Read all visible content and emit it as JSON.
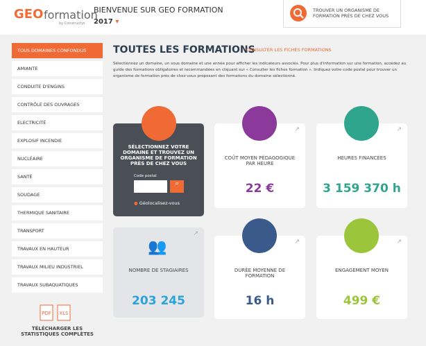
{
  "header": {
    "logo": {
      "brand": "GEO",
      "name": "formation",
      "by": "by Constructys"
    },
    "welcome": "BIENVENUE SUR GEO FORMATION",
    "year": "2017",
    "search_cta": "TROUVER UN ORGANISME DE FORMATION PRÈS DE CHEZ VOUS"
  },
  "sidebar": {
    "items": [
      "TOUS DOMAINES CONFONDUS",
      "AMIANTE",
      "CONDUITE D'ENGINS",
      "CONTRÔLE DES OUVRAGES",
      "ELECTRICITÉ",
      "EXPLOSIF INCENDIE",
      "NUCLÉAIRE",
      "SANTÉ",
      "SOUDAGE",
      "THERMIQUE SANITAIRE",
      "TRANSPORT",
      "TRAVAUX EN HAUTEUR",
      "TRAVAUX MILIEU INDUSTRIEL",
      "TRAVAUX SUBAQUATIQUES"
    ],
    "downloads": {
      "pdf": "PDF",
      "xls": "XLS",
      "label": "TÉLÉCHARGER LES STATISTIQUES COMPLÈTES"
    }
  },
  "main": {
    "title": "TOUTES LES FORMATIONS",
    "link": "CONSULTER LES FICHES FORMATIONS",
    "intro": "Sélectionnez un domaine, un sous domaine et une année pour afficher les indicateurs associés. Pour plus d'information sur une formation, accédez au guide des formations obligatoires et recommandées en cliquant sur « Consulter les fiches formation ». Indiquez votre code postal pour trouver un organisme de formation près de chez vous proposant des formations du domaine sélectionné.",
    "finder": {
      "title": "SÉLECTIONNEZ VOTRE DOMAINE ET TROUVEZ UN ORGANISME DE FORMATION PRÈS DE CHEZ VOUS",
      "postal_label": "Code postal",
      "geolocate": "Géolocalisez-vous"
    },
    "cards": [
      {
        "label": "COÛT MOYEN PÉDAGOGIQUE PAR HEURE",
        "value": "22 €"
      },
      {
        "label": "HEURES FINANCÉES",
        "value": "3 159 370 h"
      },
      {
        "label": "NOMBRE DE STAGIAIRES",
        "value": "203 245"
      },
      {
        "label": "DURÉE MOYENNE DE FORMATION",
        "value": "16 h"
      },
      {
        "label": "ENGAGEMENT MOYEN",
        "value": "499 €"
      }
    ]
  }
}
